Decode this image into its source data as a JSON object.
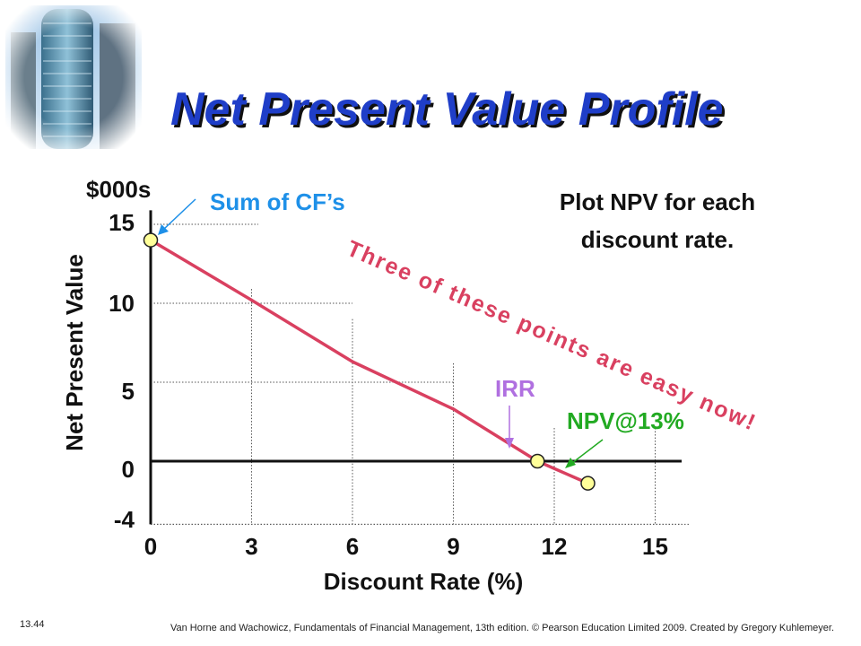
{
  "slide": {
    "title": "Net Present Value Profile",
    "logo_icon": "skyscraper-photo",
    "footer_number": "13.44",
    "footer_credit": "Van Horne and Wachowicz, Fundamentals of Financial Management, 13th edition. © Pearson Education Limited 2009. Created by Gregory Kuhlemeyer."
  },
  "chart_data": {
    "type": "line",
    "title": "",
    "xlabel": "Discount Rate (%)",
    "ylabel": "Net Present Value",
    "y_unit": "$000s",
    "xlim": [
      0,
      16.5
    ],
    "ylim": [
      -4,
      16
    ],
    "x_ticks": [
      0,
      3,
      6,
      9,
      12,
      15
    ],
    "x_tick_labels": [
      "0",
      "3",
      "6",
      "9",
      "12",
      "15"
    ],
    "y_ticks": [
      -4,
      0,
      5,
      10,
      15
    ],
    "y_tick_labels": [
      "-4",
      "0",
      "5",
      "10",
      "15"
    ],
    "series": [
      {
        "x": [
          0,
          3,
          6,
          9,
          11.5,
          13
        ],
        "y": [
          14,
          10.2,
          6.3,
          3.3,
          0,
          -1.4
        ],
        "color": "#d94060"
      }
    ],
    "markers": [
      {
        "x": 0,
        "y": 14,
        "label": "Sum of CF’s",
        "label_color": "#1e90e8"
      },
      {
        "x": 11.5,
        "y": 0,
        "label": "IRR",
        "label_color": "#b070e0"
      },
      {
        "x": 13,
        "y": -1.4,
        "label": "NPV@13%",
        "label_color": "#22aa22"
      }
    ],
    "marker_color": "#ffff99",
    "annotations": {
      "plot_note_line1": "Plot NPV for each",
      "plot_note_line2": "discount rate.",
      "diagonal_note": "Three of these points are easy now!"
    },
    "grid": "dotted-guides"
  }
}
